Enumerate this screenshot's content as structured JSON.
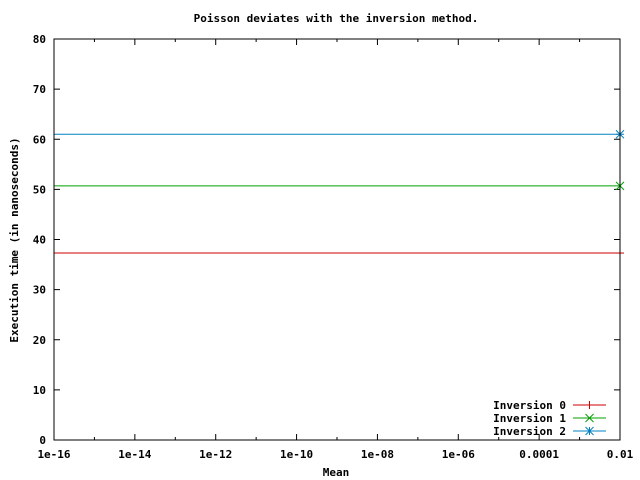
{
  "chart_data": {
    "type": "line",
    "title": "Poisson deviates with the inversion method.",
    "xlabel": "Mean",
    "ylabel": "Execution time (in nanoseconds)",
    "x_scale": "log",
    "xlim": [
      1e-16,
      0.01
    ],
    "ylim": [
      0,
      80
    ],
    "x_ticks": [
      {
        "value": 1e-16,
        "label": "1e-16"
      },
      {
        "value": 1e-14,
        "label": "1e-14"
      },
      {
        "value": 1e-12,
        "label": "1e-12"
      },
      {
        "value": 1e-10,
        "label": "1e-10"
      },
      {
        "value": 1e-08,
        "label": "1e-08"
      },
      {
        "value": 1e-06,
        "label": "1e-06"
      },
      {
        "value": 0.0001,
        "label": "0.0001"
      },
      {
        "value": 0.01,
        "label": "0.01"
      }
    ],
    "y_ticks": [
      {
        "value": 0,
        "label": "0"
      },
      {
        "value": 10,
        "label": "10"
      },
      {
        "value": 20,
        "label": "20"
      },
      {
        "value": 30,
        "label": "30"
      },
      {
        "value": 40,
        "label": "40"
      },
      {
        "value": 50,
        "label": "50"
      },
      {
        "value": 60,
        "label": "60"
      },
      {
        "value": 70,
        "label": "70"
      },
      {
        "value": 80,
        "label": "80"
      }
    ],
    "grid": false,
    "legend_position": "bottom-right",
    "series": [
      {
        "name": "Inversion 0",
        "color": "#cc0000",
        "marker": "plus",
        "x": [
          1e-16,
          0.01
        ],
        "y": [
          37.3,
          37.3
        ]
      },
      {
        "name": "Inversion 1",
        "color": "#00a000",
        "marker": "cross",
        "x": [
          1e-16,
          0.01
        ],
        "y": [
          50.7,
          50.7
        ]
      },
      {
        "name": "Inversion 2",
        "color": "#0080c0",
        "marker": "star",
        "x": [
          1e-16,
          0.01
        ],
        "y": [
          61.0,
          61.0
        ]
      }
    ]
  }
}
